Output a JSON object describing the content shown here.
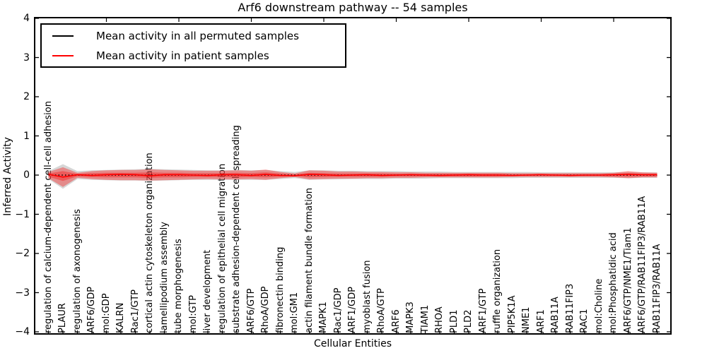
{
  "title": "Arf6 downstream pathway -- 54 samples",
  "axes": {
    "x_label": "Cellular Entities",
    "y_label": "Inferred Activity",
    "y_tick_labels": [
      "4",
      "3",
      "2",
      "1",
      "0",
      "−1",
      "−2",
      "−3",
      "−4"
    ]
  },
  "legend": {
    "items": [
      {
        "label": "Mean activity in all permuted samples",
        "color": "#000000"
      },
      {
        "label": "Mean activity in patient samples",
        "color": "#ff0000"
      }
    ]
  },
  "chart_data": {
    "type": "line",
    "title": "Arf6 downstream pathway -- 54 samples",
    "xlabel": "Cellular Entities",
    "ylabel": "Inferred Activity",
    "ylim": [
      -4,
      4
    ],
    "yticks": [
      4,
      3,
      2,
      1,
      0,
      -1,
      -2,
      -3,
      -4
    ],
    "grid": false,
    "legend_position": "upper left",
    "categories": [
      "regulation of calcium-dependent cell-cell adhesion",
      "PLAUR",
      "regulation of axonogenesis",
      "ARF6/GDP",
      "mol:GDP",
      "KALRN",
      "Rac1/GTP",
      "cortical actin cytoskeleton organization",
      "lamellipodium assembly",
      "tube morphogenesis",
      "mol:GTP",
      "liver development",
      "regulation of epithelial cell migration",
      "substrate adhesion-dependent cell spreading",
      "ARF6/GTP",
      "RhoA/GDP",
      "fibronectin binding",
      "mol:GM1",
      "actin filament bundle formation",
      "MAPK1",
      "Rac1/GDP",
      "ARF1/GDP",
      "myoblast fusion",
      "RhoA/GTP",
      "ARF6",
      "MAPK3",
      "TIAM1",
      "RHOA",
      "PLD1",
      "PLD2",
      "ARF1/GTP",
      "ruffle organization",
      "PIP5K1A",
      "NME1",
      "ARF1",
      "RAB11A",
      "RAB11FIP3",
      "RAC1",
      "mol:Choline",
      "mol:Phosphatidic acid",
      "ARF6/GTP/NME1/Tiam1",
      "ARF6/GTP/RAB11FIP3/RAB11A",
      "RAB11FIP3/RAB11A"
    ],
    "series": [
      {
        "name": "Mean activity in all permuted samples",
        "color": "#000000",
        "style": "dotted",
        "values": [
          0,
          0,
          0,
          0,
          0,
          0,
          0,
          0,
          0,
          0,
          0,
          0,
          0,
          0,
          0,
          0,
          0,
          0,
          0,
          0,
          0,
          0,
          0,
          0,
          0,
          0,
          0,
          0,
          0,
          0,
          0,
          0,
          0,
          0,
          0,
          0,
          0,
          0,
          0,
          0,
          0,
          0,
          0
        ]
      },
      {
        "name": "Mean activity in patient samples",
        "color": "#ff0000",
        "style": "solid",
        "values": [
          0.02,
          -0.05,
          0.01,
          -0.01,
          0.01,
          0.02,
          0.01,
          -0.02,
          0.01,
          0.01,
          0.0,
          -0.01,
          0.01,
          0.01,
          -0.01,
          0.02,
          -0.01,
          -0.02,
          0.02,
          0.01,
          -0.01,
          0.0,
          0.01,
          -0.01,
          0.0,
          0.01,
          0.0,
          -0.01,
          0.0,
          0.01,
          0.0,
          0.0,
          -0.01,
          0.0,
          0.01,
          0.0,
          -0.01,
          0.0,
          0.0,
          0.01,
          0.02,
          0.01,
          0.01
        ]
      }
    ],
    "bands": [
      {
        "name": "permuted-samples-std-band",
        "color": "#999999",
        "opacity": 0.4,
        "upper": [
          0.1,
          0.28,
          0.1,
          0.12,
          0.13,
          0.14,
          0.15,
          0.16,
          0.15,
          0.14,
          0.13,
          0.12,
          0.12,
          0.13,
          0.12,
          0.13,
          0.1,
          0.08,
          0.12,
          0.12,
          0.11,
          0.11,
          0.1,
          0.1,
          0.1,
          0.09,
          0.09,
          0.09,
          0.08,
          0.08,
          0.08,
          0.08,
          0.08,
          0.08,
          0.07,
          0.07,
          0.07,
          0.07,
          0.07,
          0.07,
          0.08,
          0.07,
          0.07
        ],
        "lower": [
          -0.1,
          -0.35,
          -0.1,
          -0.12,
          -0.13,
          -0.14,
          -0.14,
          -0.15,
          -0.14,
          -0.13,
          -0.12,
          -0.12,
          -0.12,
          -0.12,
          -0.12,
          -0.12,
          -0.1,
          -0.08,
          -0.12,
          -0.11,
          -0.11,
          -0.1,
          -0.1,
          -0.1,
          -0.09,
          -0.09,
          -0.09,
          -0.08,
          -0.08,
          -0.08,
          -0.08,
          -0.08,
          -0.08,
          -0.07,
          -0.07,
          -0.07,
          -0.07,
          -0.07,
          -0.07,
          -0.07,
          -0.08,
          -0.07,
          -0.07
        ]
      },
      {
        "name": "patient-samples-std-band",
        "color": "#ff0000",
        "opacity": 0.35,
        "upper": [
          0.08,
          0.2,
          0.06,
          0.1,
          0.12,
          0.13,
          0.13,
          0.15,
          0.13,
          0.12,
          0.11,
          0.11,
          0.11,
          0.12,
          0.11,
          0.14,
          0.08,
          0.04,
          0.12,
          0.11,
          0.09,
          0.09,
          0.08,
          0.08,
          0.07,
          0.07,
          0.06,
          0.06,
          0.06,
          0.06,
          0.06,
          0.06,
          0.05,
          0.05,
          0.05,
          0.05,
          0.05,
          0.05,
          0.05,
          0.06,
          0.1,
          0.07,
          0.06
        ],
        "lower": [
          -0.08,
          -0.3,
          -0.07,
          -0.1,
          -0.12,
          -0.13,
          -0.13,
          -0.14,
          -0.13,
          -0.12,
          -0.11,
          -0.1,
          -0.11,
          -0.11,
          -0.1,
          -0.12,
          -0.08,
          -0.05,
          -0.11,
          -0.1,
          -0.09,
          -0.09,
          -0.08,
          -0.08,
          -0.07,
          -0.07,
          -0.06,
          -0.06,
          -0.06,
          -0.06,
          -0.06,
          -0.06,
          -0.05,
          -0.05,
          -0.05,
          -0.05,
          -0.05,
          -0.05,
          -0.05,
          -0.06,
          -0.08,
          -0.06,
          -0.06
        ]
      },
      {
        "name": "patient-samples-inner-band",
        "color": "#ff0000",
        "opacity": 0.35,
        "upper": [
          0.04,
          0.1,
          0.03,
          0.05,
          0.06,
          0.06,
          0.06,
          0.07,
          0.06,
          0.06,
          0.05,
          0.05,
          0.05,
          0.06,
          0.05,
          0.07,
          0.04,
          0.02,
          0.06,
          0.05,
          0.04,
          0.04,
          0.04,
          0.04,
          0.03,
          0.03,
          0.03,
          0.03,
          0.03,
          0.03,
          0.03,
          0.03,
          0.02,
          0.02,
          0.02,
          0.02,
          0.02,
          0.02,
          0.02,
          0.03,
          0.05,
          0.03,
          0.03
        ],
        "lower": [
          -0.04,
          -0.15,
          -0.03,
          -0.05,
          -0.06,
          -0.06,
          -0.06,
          -0.07,
          -0.06,
          -0.06,
          -0.05,
          -0.05,
          -0.05,
          -0.06,
          -0.05,
          -0.06,
          -0.04,
          -0.02,
          -0.06,
          -0.05,
          -0.04,
          -0.04,
          -0.04,
          -0.04,
          -0.03,
          -0.03,
          -0.03,
          -0.03,
          -0.03,
          -0.03,
          -0.03,
          -0.03,
          -0.02,
          -0.02,
          -0.02,
          -0.02,
          -0.02,
          -0.02,
          -0.02,
          -0.03,
          -0.04,
          -0.03,
          -0.03
        ]
      }
    ]
  }
}
